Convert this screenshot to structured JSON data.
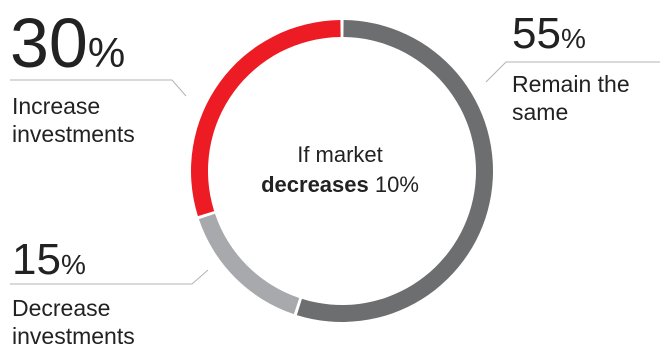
{
  "chart_data": {
    "type": "pie",
    "variant": "donut",
    "center_label": {
      "line1": "If market",
      "line2_bold": "decreases",
      "line2_rest": " 10%"
    },
    "slices": [
      {
        "key": "increase",
        "value": 30,
        "value_label": "30",
        "sign": "%",
        "label_line1": "Increase",
        "label_line2": "investments",
        "color": "#ed1c24"
      },
      {
        "key": "remain",
        "value": 55,
        "value_label": "55",
        "sign": "%",
        "label_line1": "Remain the",
        "label_line2": "same",
        "color": "#6d6e70"
      },
      {
        "key": "decrease",
        "value": 15,
        "value_label": "15",
        "sign": "%",
        "label_line1": "Decrease",
        "label_line2": "investments",
        "color": "#a7a9ac"
      }
    ],
    "slice_order_clockwise_from_top": [
      "remain",
      "decrease",
      "increase"
    ]
  }
}
